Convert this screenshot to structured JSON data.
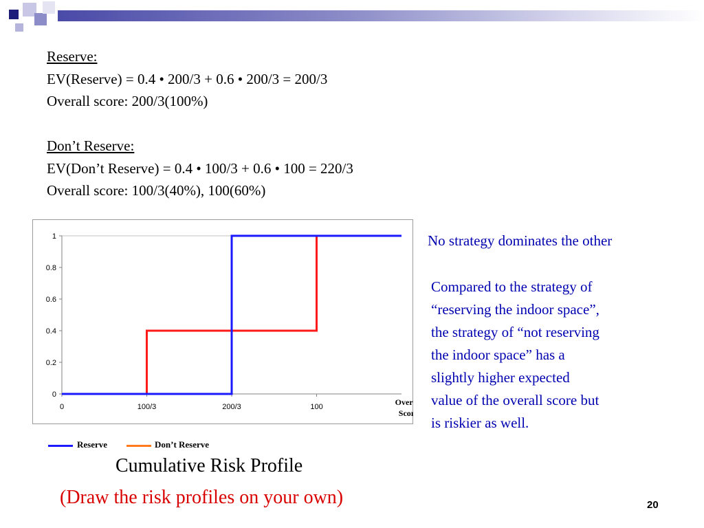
{
  "colors": {
    "reserve": "#1a1aff",
    "dont_reserve": "#ff1a1a",
    "legend_dont_reserve": "#ff7a1a",
    "side_text": "#0000b0",
    "caption_red": "#d90000"
  },
  "reserve_section": {
    "heading": "Reserve:",
    "ev_line": "EV(Reserve) = 0.4 • 200/3 + 0.6 • 200/3 = 200/3",
    "score_line": "Overall score: 200/3(100%)"
  },
  "dont_reserve_section": {
    "heading": "Don’t Reserve:",
    "ev_line": "EV(Don’t Reserve) = 0.4 • 100/3 + 0.6 • 100 = 220/3",
    "score_line": "Overall score: 100/3(40%), 100(60%)"
  },
  "chart_data": {
    "type": "line",
    "step": true,
    "xlabel": "Overall Score",
    "x_tick_labels": [
      "0",
      "100/3",
      "200/3",
      "100"
    ],
    "x_ticks": [
      0,
      33.33,
      66.67,
      100
    ],
    "xlim": [
      0,
      133.33
    ],
    "ylim": [
      0,
      1
    ],
    "y_ticks": [
      0,
      0.2,
      0.4,
      0.6,
      0.8,
      1
    ],
    "y_tick_labels": [
      "0",
      "0.2",
      "0.4",
      "0.6",
      "0.8",
      "1"
    ],
    "grid": "top border line only",
    "series": [
      {
        "name": "Reserve",
        "color": "#1a1aff",
        "points": [
          [
            0,
            0
          ],
          [
            66.67,
            0
          ],
          [
            66.67,
            1
          ],
          [
            133.33,
            1
          ]
        ]
      },
      {
        "name": "Don’t Reserve",
        "color": "#ff1a1a",
        "points": [
          [
            0,
            0
          ],
          [
            33.33,
            0
          ],
          [
            33.33,
            0.4
          ],
          [
            100,
            0.4
          ],
          [
            100,
            1
          ],
          [
            133.33,
            1
          ]
        ]
      }
    ]
  },
  "legend": {
    "reserve_label": "Reserve",
    "dont_reserve_label": "Don’t Reserve"
  },
  "caption": "Cumulative Risk Profile",
  "caption_note": "(Draw the risk profiles on your own)",
  "side_note": "No strategy dominates the other",
  "side_paragraph": [
    "Compared to the strategy of",
    "“reserving the indoor space”,",
    "the strategy of “not reserving",
    "the indoor space” has a",
    "slightly higher expected",
    "value of the overall score but",
    "is riskier as well."
  ],
  "page_number": "20"
}
